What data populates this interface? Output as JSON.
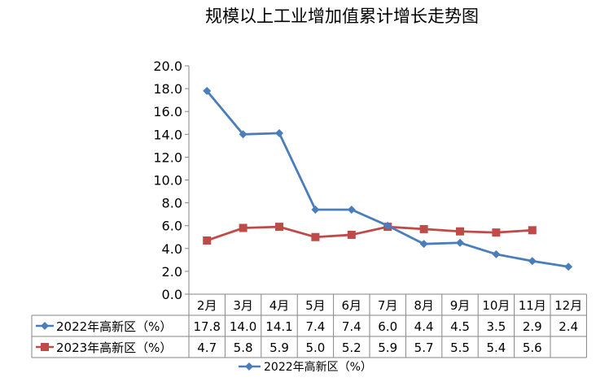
{
  "chart_data": {
    "type": "line",
    "title": "规模以上工业增加值累计增长走势图",
    "xlabel": "",
    "ylabel": "",
    "ylim": [
      0,
      20
    ],
    "y_ticks": [
      "0.0",
      "2.0",
      "4.0",
      "6.0",
      "8.0",
      "10.0",
      "12.0",
      "14.0",
      "16.0",
      "18.0",
      "20.0"
    ],
    "categories": [
      "2月",
      "3月",
      "4月",
      "5月",
      "6月",
      "7月",
      "8月",
      "9月",
      "10月",
      "11月",
      "12月"
    ],
    "grid": false,
    "data_table": true,
    "legend_position": "bottom",
    "series": [
      {
        "name": "2022年高新区（%）",
        "color": "#4a7ebb",
        "marker": "diamond",
        "values": [
          17.8,
          14.0,
          14.1,
          7.4,
          7.4,
          6.0,
          4.4,
          4.5,
          3.5,
          2.9,
          2.4
        ],
        "labels": [
          "17.8",
          "14.0",
          "14.1",
          "7.4",
          "7.4",
          "6.0",
          "4.4",
          "4.5",
          "3.5",
          "2.9",
          "2.4"
        ]
      },
      {
        "name": "2023年高新区（%）",
        "color": "#be4b48",
        "marker": "square",
        "values": [
          4.7,
          5.8,
          5.9,
          5.0,
          5.2,
          5.9,
          5.7,
          5.5,
          5.4,
          5.6,
          null
        ],
        "labels": [
          "4.7",
          "5.8",
          "5.9",
          "5.0",
          "5.2",
          "5.9",
          "5.7",
          "5.5",
          "5.4",
          "5.6",
          ""
        ]
      }
    ],
    "legend": [
      "2022年高新区（%）"
    ]
  }
}
